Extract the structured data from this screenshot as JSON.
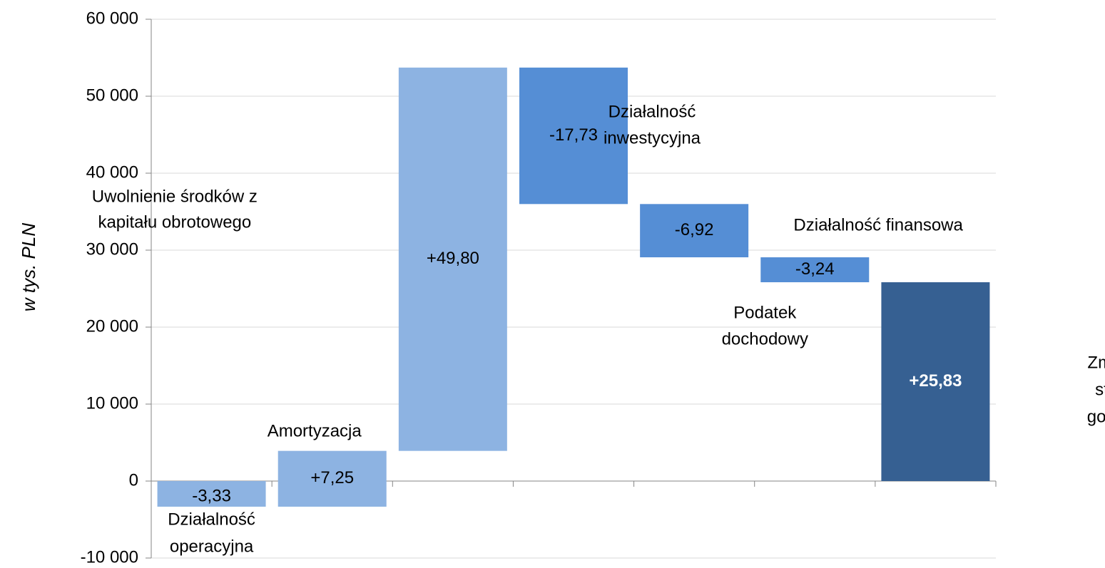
{
  "chart_data": {
    "type": "waterfall",
    "y_axis_label": "w tys. PLN",
    "categories": [
      [
        "Działalność",
        "operacyjna"
      ],
      [
        "Amortyzacja"
      ],
      [
        "Uwolnienie środków z",
        "kapitału obrotowego"
      ],
      [
        "Działalność",
        "inwestycyjna"
      ],
      [
        "Działalność finansowa"
      ],
      [
        "Podatek",
        "dochodowy"
      ],
      [
        "Zmiana",
        "stanu",
        "gotówki"
      ]
    ],
    "values": [
      -3330,
      7250,
      49800,
      -17730,
      -6920,
      -3240,
      25830
    ],
    "value_labels": [
      "-3,33",
      "+7,25",
      "+49,80",
      "-17,73",
      "-6,92",
      "-3,24",
      "+25,83"
    ],
    "is_total": [
      false,
      false,
      false,
      false,
      false,
      false,
      true
    ],
    "colors": [
      "#8db3e2",
      "#8db3e2",
      "#8db3e2",
      "#558ed5",
      "#558ed5",
      "#558ed5",
      "#366092"
    ],
    "ylim": [
      -10000,
      60000
    ],
    "yticks": [
      {
        "value": -10000,
        "label": "-10 000"
      },
      0,
      {
        "value": 10000,
        "label": "10 000"
      },
      {
        "value": 20000,
        "label": "20 000"
      },
      {
        "value": 30000,
        "label": "30 000"
      },
      {
        "value": 40000,
        "label": "40 000"
      },
      {
        "value": 50000,
        "label": "50 000"
      },
      {
        "value": 60000,
        "label": "60 000"
      }
    ],
    "grid": true
  }
}
